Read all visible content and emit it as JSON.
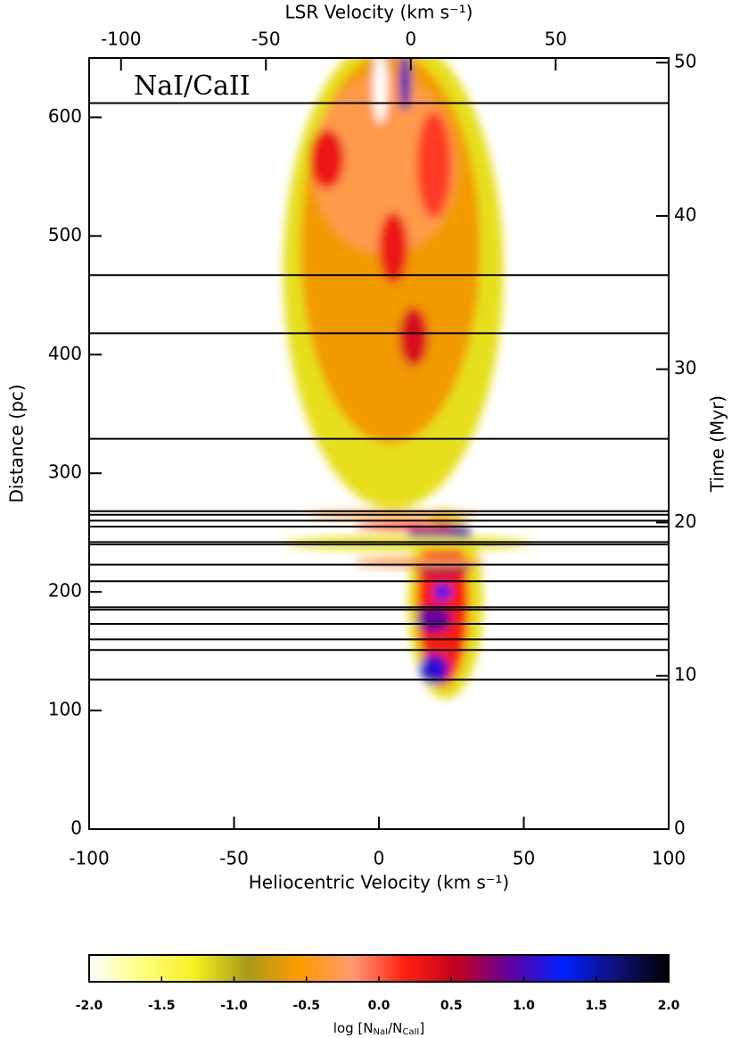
{
  "chart_data": {
    "type": "heatmap",
    "annotation": "NaI/CaII",
    "xlabel": "Heliocentric Velocity (km s⁻¹)",
    "xlim": [
      -100,
      100
    ],
    "xticks": [
      -100,
      -50,
      0,
      50,
      100
    ],
    "x2label": "LSR Velocity (km s⁻¹)",
    "x2lim": [
      -111,
      89
    ],
    "x2ticks": [
      -100,
      -50,
      0,
      50
    ],
    "ylabel": "Distance (pc)",
    "ylim": [
      0,
      650
    ],
    "yticks": [
      0,
      100,
      200,
      300,
      400,
      500,
      600
    ],
    "y2label": "Time (Myr)",
    "y2lim": [
      0,
      50.3
    ],
    "y2ticks": [
      0,
      10,
      20,
      30,
      40,
      50
    ],
    "sightlines": [
      612,
      467,
      418,
      329,
      268,
      265,
      260,
      255,
      242,
      240,
      223,
      209,
      187,
      185,
      173,
      160,
      151,
      126
    ],
    "patches": [
      {
        "vel": 5,
        "dist": 470,
        "vel_width": 76,
        "dist_height": 400,
        "value": -1.2
      },
      {
        "vel": 4,
        "dist": 490,
        "vel_width": 62,
        "dist_height": 330,
        "value": -0.6
      },
      {
        "vel": 2,
        "dist": 560,
        "vel_width": 50,
        "dist_height": 150,
        "value": -0.3
      },
      {
        "vel": -18,
        "dist": 565,
        "vel_width": 12,
        "dist_height": 50,
        "value": 0.3
      },
      {
        "vel": 5,
        "dist": 490,
        "vel_width": 10,
        "dist_height": 60,
        "value": 0.3
      },
      {
        "vel": 12,
        "dist": 415,
        "vel_width": 10,
        "dist_height": 50,
        "value": 0.4
      },
      {
        "vel": 19,
        "dist": 560,
        "vel_width": 12,
        "dist_height": 90,
        "value": 0.1
      },
      {
        "vel": 0.5,
        "dist": 625,
        "vel_width": 5,
        "dist_height": 60,
        "value": -2
      },
      {
        "vel": 9,
        "dist": 630,
        "vel_width": 4,
        "dist_height": 50,
        "value": 1.0
      },
      {
        "vel": 23,
        "dist": 190,
        "vel_width": 26,
        "dist_height": 160,
        "value": -1.2
      },
      {
        "vel": 22,
        "dist": 190,
        "vel_width": 18,
        "dist_height": 140,
        "value": 0.2
      },
      {
        "vel": 21,
        "dist": 250,
        "vel_width": 22,
        "dist_height": 16,
        "value": 1.0
      },
      {
        "vel": 22,
        "dist": 222,
        "vel_width": 20,
        "dist_height": 16,
        "value": 0.7
      },
      {
        "vel": 22,
        "dist": 200,
        "vel_width": 6,
        "dist_height": 14,
        "value": 1.3
      },
      {
        "vel": 19,
        "dist": 177,
        "vel_width": 12,
        "dist_height": 22,
        "value": 0.9
      },
      {
        "vel": 19,
        "dist": 135,
        "vel_width": 10,
        "dist_height": 25,
        "value": 1.1
      },
      {
        "vel": 5,
        "dist": 265,
        "vel_width": 60,
        "dist_height": 6,
        "value": -0.4
      },
      {
        "vel": 10,
        "dist": 241,
        "vel_width": 84,
        "dist_height": 12,
        "value": -1.2
      },
      {
        "vel": 14,
        "dist": 225,
        "vel_width": 46,
        "dist_height": 8,
        "value": -0.3
      },
      {
        "vel": 10,
        "dist": 255,
        "vel_width": 36,
        "dist_height": 6,
        "value": 0.2
      }
    ],
    "colorbar": {
      "label_prefix": "log [N",
      "label_sub1": "NaI",
      "label_mid": "/N",
      "label_sub2": "CaII",
      "label_suffix": "]",
      "clim": [
        -2,
        2
      ],
      "ticks": [
        {
          "value": -2,
          "label": "-2.0"
        },
        {
          "value": -1.5,
          "label": "-1.5"
        },
        {
          "value": -1,
          "label": "-1.0"
        },
        {
          "value": -0.5,
          "label": "-0.5"
        },
        {
          "value": 0,
          "label": "0.0"
        },
        {
          "value": 0.5,
          "label": "0.5"
        },
        {
          "value": 1,
          "label": "1.0"
        },
        {
          "value": 1.5,
          "label": "1.5"
        },
        {
          "value": 2,
          "label": "2.0"
        }
      ],
      "colors": [
        "#ffffff",
        "#ffff80",
        "#f5f020",
        "#a89a1a",
        "#ff9a00",
        "#ff9a70",
        "#ff2010",
        "#c00020",
        "#6000a0",
        "#0020ff",
        "#10107a",
        "#000000"
      ]
    }
  }
}
